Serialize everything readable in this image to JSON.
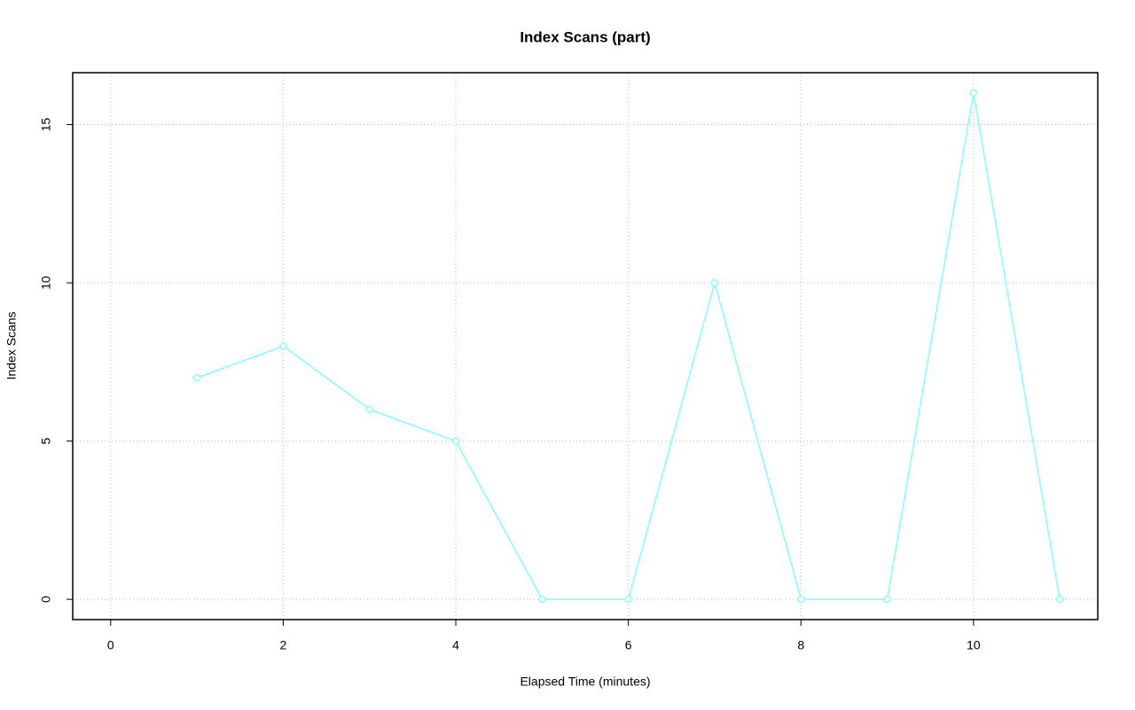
{
  "chart_data": {
    "type": "line",
    "title": "Index Scans (part)",
    "x_label": "Elapsed Time (minutes)",
    "y_label": "Index Scans",
    "x": [
      1,
      2,
      3,
      4,
      5,
      6,
      7,
      8,
      9,
      10,
      11
    ],
    "series": [
      {
        "color": "#7fffff",
        "values": [
          7,
          8,
          6,
          5,
          0,
          0,
          10,
          0,
          0,
          16,
          0
        ]
      }
    ],
    "xlim": [
      -0.44,
      11.44
    ],
    "xticks": [
      0,
      2,
      4,
      6,
      8,
      10
    ],
    "ylim": [
      -0.64,
      16.64
    ],
    "yticks": [
      0,
      5,
      10,
      15
    ],
    "grid": true
  }
}
